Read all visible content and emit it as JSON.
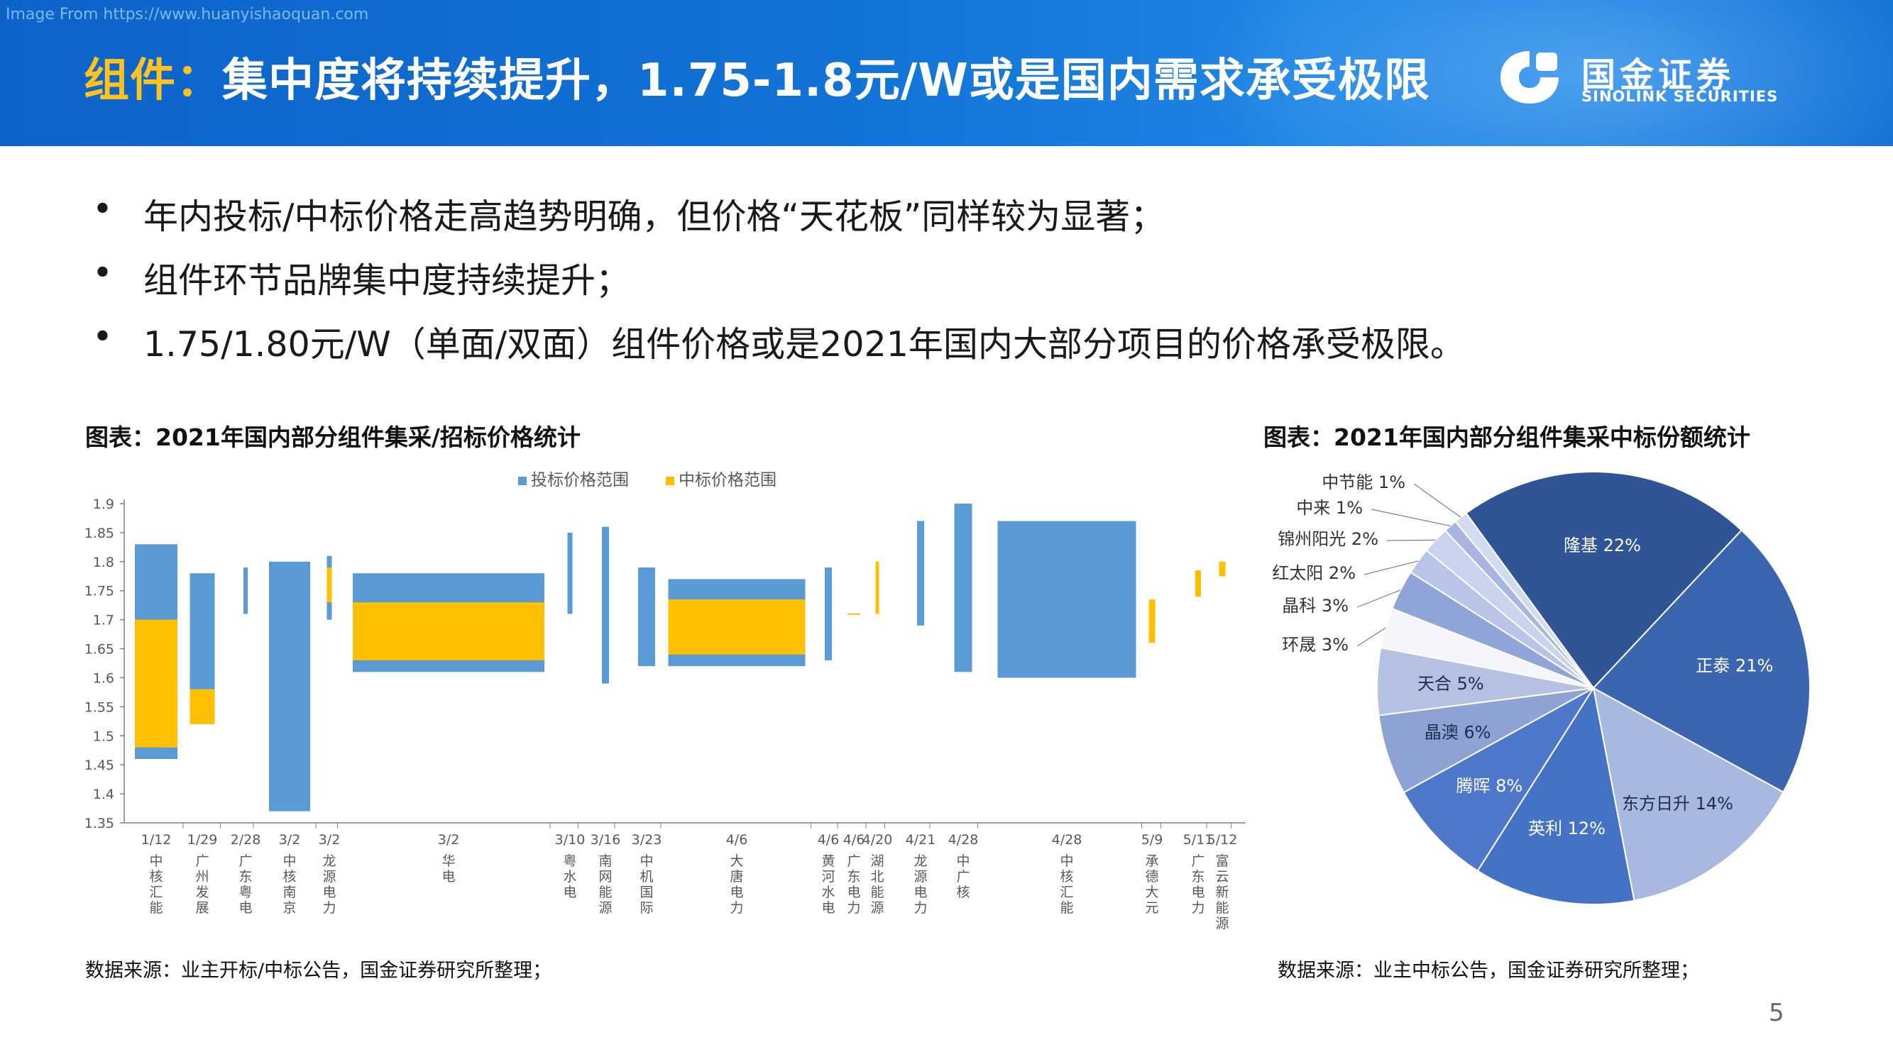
{
  "watermark": "Image From https://www.huanyishaoquan.com",
  "header": {
    "title_highlight": "组件：",
    "title_rest": "集中度将持续提升，1.75-1.8元/W或是国内需求承受极限",
    "logo_cn": "国金证券",
    "logo_en": "SINOLINK SECURITIES"
  },
  "bullets": [
    "年内投标/中标价格走高趋势明确，但价格“天花板”同样较为显著；",
    "组件环节品牌集中度持续提升；",
    "1.75/1.80元/W（单面/双面）组件价格或是2021年国内大部分项目的价格承受极限。"
  ],
  "bullet_symbol": "•",
  "charts": {
    "left_caption": "图表：2021年国内部分组件集采/招标价格统计",
    "left_source": "数据来源：业主开标/中标公告，国金证券研究所整理；",
    "right_caption": "图表：2021年国内部分组件集采中标份额统计",
    "right_source": "数据来源：业主中标公告，国金证券研究所整理；"
  },
  "page_number": "5",
  "colors": {
    "bid": "#5b9bd5",
    "win": "#ffc000",
    "header": "#1273d6",
    "highlight": "#ffc21e"
  },
  "chart_data": [
    {
      "type": "bar",
      "subtype": "floating-range",
      "ylim": [
        1.35,
        1.9
      ],
      "yticks": [
        "1.35",
        "1.4",
        "1.45",
        "1.5",
        "1.55",
        "1.6",
        "1.65",
        "1.7",
        "1.75",
        "1.8",
        "1.85",
        "1.9"
      ],
      "legend_position": "top",
      "series": [
        {
          "name": "投标价格范围",
          "color": "#5b9bd5"
        },
        {
          "name": "中标价格范围",
          "color": "#ffc000"
        }
      ],
      "categories": [
        {
          "date": "1/12",
          "name": "中核汇能",
          "bid": [
            1.46,
            1.83
          ],
          "win": [
            1.48,
            1.7
          ]
        },
        {
          "date": "1/29",
          "name": "广州发展",
          "bid": [
            1.58,
            1.78
          ],
          "win": [
            1.52,
            1.58
          ]
        },
        {
          "date": "2/28",
          "name": "广东粤电",
          "bid": [
            1.71,
            1.79
          ],
          "win": null
        },
        {
          "date": "3/2",
          "name": "中核南京",
          "bid": [
            1.37,
            1.8
          ],
          "win": null
        },
        {
          "date": "3/2",
          "name": "龙源电力",
          "bid": [
            1.7,
            1.81
          ],
          "win": [
            1.73,
            1.79
          ]
        },
        {
          "date": "3/2",
          "name": "华电",
          "bid": [
            1.61,
            1.78
          ],
          "win": [
            1.63,
            1.73
          ]
        },
        {
          "date": "3/10",
          "name": "粤水电",
          "bid": [
            1.71,
            1.85
          ],
          "win": null
        },
        {
          "date": "3/16",
          "name": "南网能源",
          "bid": [
            1.59,
            1.86
          ],
          "win": null
        },
        {
          "date": "3/23",
          "name": "中机国际",
          "bid": [
            1.62,
            1.79
          ],
          "win": null
        },
        {
          "date": "4/6",
          "name": "大唐电力",
          "bid": [
            1.62,
            1.77
          ],
          "win": [
            1.64,
            1.735
          ]
        },
        {
          "date": "4/6",
          "name": "黄河水电",
          "bid": [
            1.63,
            1.79
          ],
          "win": null
        },
        {
          "date": "4/6",
          "name": "广东电力",
          "bid": null,
          "win": [
            1.709,
            1.711
          ]
        },
        {
          "date": "4/20",
          "name": "湖北能源",
          "bid": null,
          "win": [
            1.71,
            1.8
          ]
        },
        {
          "date": "4/21",
          "name": "龙源电力",
          "bid": [
            1.69,
            1.87
          ],
          "win": null
        },
        {
          "date": "4/28",
          "name": "中广核",
          "bid": [
            1.61,
            1.9
          ],
          "win": null
        },
        {
          "date": "4/28",
          "name": "中核汇能",
          "bid": [
            1.6,
            1.87
          ],
          "win": null
        },
        {
          "date": "5/9",
          "name": "承德大元",
          "bid": null,
          "win": [
            1.66,
            1.735
          ]
        },
        {
          "date": "5/11",
          "name": "广东电力",
          "bid": null,
          "win": [
            1.74,
            1.785
          ]
        },
        {
          "date": "5/12",
          "name": "富云新能源",
          "bid": null,
          "win": [
            1.775,
            1.8
          ]
        }
      ]
    },
    {
      "type": "pie",
      "slices": [
        {
          "label": "隆基 22%",
          "value": 22,
          "color": "#2f5597"
        },
        {
          "label": "正泰 21%",
          "value": 21,
          "color": "#3c65b0"
        },
        {
          "label": "东方日升 14%",
          "value": 14,
          "color": "#a9b8e0"
        },
        {
          "label": "英利 12%",
          "value": 12,
          "color": "#4472c4"
        },
        {
          "label": "腾晖 8%",
          "value": 8,
          "color": "#4e78c9"
        },
        {
          "label": "晶澳 6%",
          "value": 6,
          "color": "#8ea2d4"
        },
        {
          "label": "天合 5%",
          "value": 5,
          "color": "#b4c1e3"
        },
        {
          "label": "环晟 3%",
          "value": 3,
          "color": "#f3f5fa"
        },
        {
          "label": "晶科 3%",
          "value": 3,
          "color": "#8fa5d8"
        },
        {
          "label": "红太阳 2%",
          "value": 2,
          "color": "#b8c5e8"
        },
        {
          "label": "锦州阳光 2%",
          "value": 2,
          "color": "#c9d3ee"
        },
        {
          "label": "中来 1%",
          "value": 1,
          "color": "#a7b6e0"
        },
        {
          "label": "中节能 1%",
          "value": 1,
          "color": "#d3dbf1"
        }
      ]
    }
  ]
}
